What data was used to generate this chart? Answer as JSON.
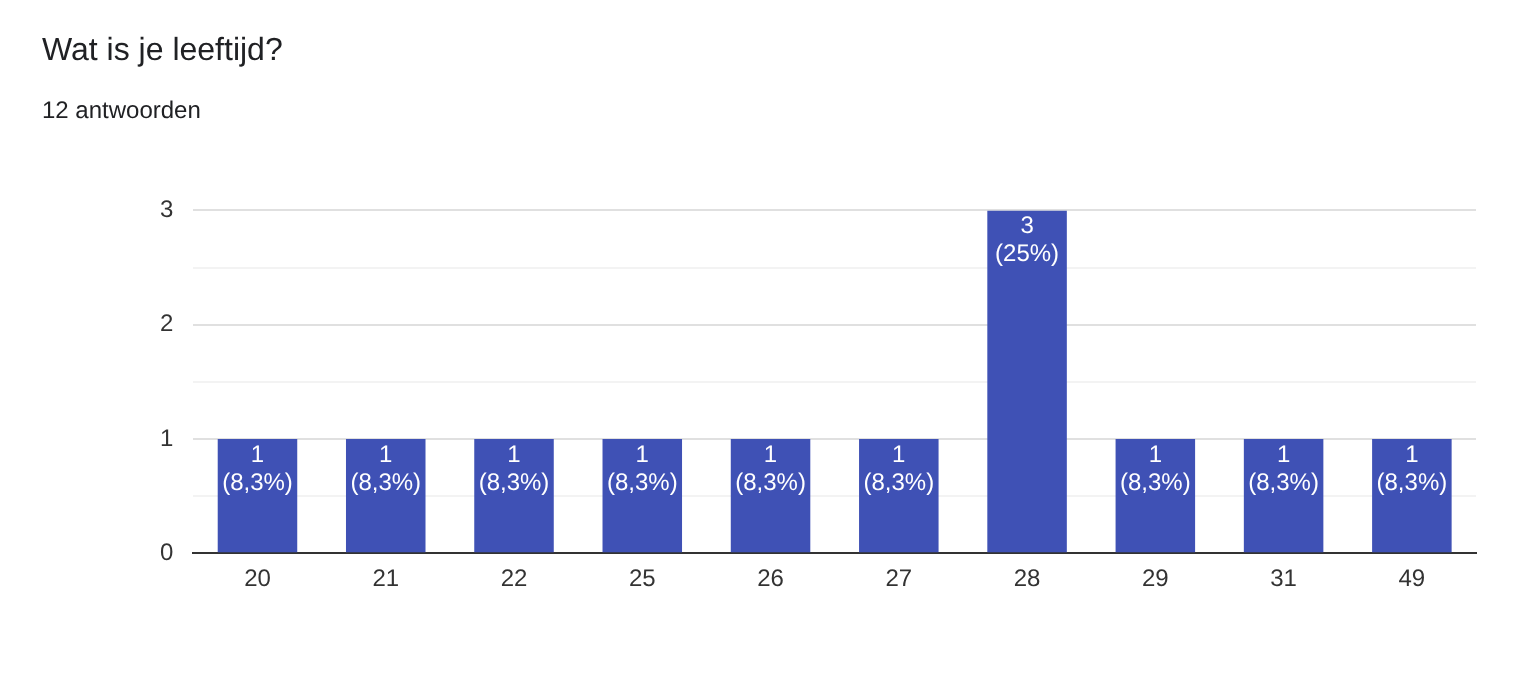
{
  "chart_data": {
    "type": "bar",
    "title": "Wat is je leeftijd?",
    "subtitle": "12 antwoorden",
    "categories": [
      "20",
      "21",
      "22",
      "25",
      "26",
      "27",
      "28",
      "29",
      "31",
      "49"
    ],
    "values": [
      1,
      1,
      1,
      1,
      1,
      1,
      3,
      1,
      1,
      1
    ],
    "value_labels": [
      "1\n(8,3%)",
      "1\n(8,3%)",
      "1\n(8,3%)",
      "1\n(8,3%)",
      "1\n(8,3%)",
      "1\n(8,3%)",
      "3\n(25%)",
      "1\n(8,3%)",
      "1\n(8,3%)",
      "1\n(8,3%)"
    ],
    "color": "#3f51b5",
    "ylim": [
      0,
      3
    ],
    "yticks": [
      0,
      {
        "value": 0.5,
        "label": null
      },
      1,
      {
        "value": 1.5,
        "label": null
      },
      2,
      {
        "value": 2.5,
        "label": null
      },
      3
    ],
    "grid": "y",
    "legend": false
  }
}
